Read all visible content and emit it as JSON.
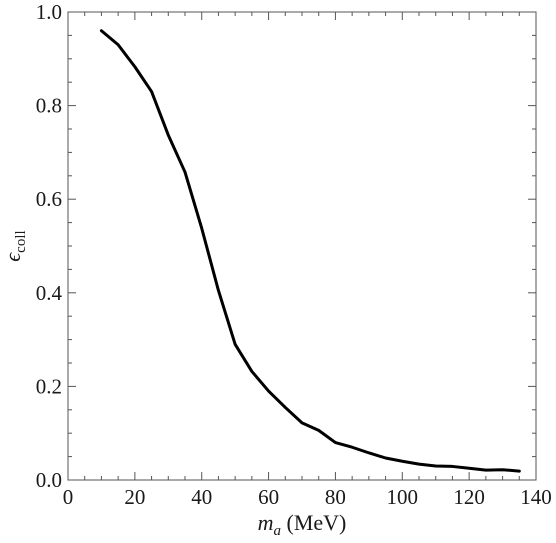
{
  "chart_data": {
    "type": "line",
    "xlabel": "m_a (MeV)",
    "ylabel": "ε_coll",
    "xlim": [
      0,
      140
    ],
    "ylim": [
      0,
      1.0
    ],
    "grid": false,
    "x_ticks": [
      0,
      20,
      40,
      60,
      80,
      100,
      120,
      140
    ],
    "y_ticks": [
      0.0,
      0.2,
      0.4,
      0.6,
      0.8,
      1.0
    ],
    "x_tick_labels": [
      "0",
      "20",
      "40",
      "60",
      "80",
      "100",
      "120",
      "140"
    ],
    "y_tick_labels": [
      "0.0",
      "0.2",
      "0.4",
      "0.6",
      "0.8",
      "1.0"
    ],
    "series": [
      {
        "color": "#000000",
        "x": [
          10,
          15,
          20,
          25,
          30,
          35,
          40,
          45,
          50,
          55,
          60,
          65,
          70,
          75,
          80,
          85,
          90,
          95,
          100,
          105,
          110,
          115,
          120,
          125,
          130,
          135
        ],
        "y": [
          0.96,
          0.93,
          0.883,
          0.83,
          0.737,
          0.658,
          0.538,
          0.405,
          0.29,
          0.232,
          0.19,
          0.155,
          0.122,
          0.106,
          0.08,
          0.07,
          0.058,
          0.047,
          0.04,
          0.034,
          0.03,
          0.029,
          0.025,
          0.021,
          0.022,
          0.019
        ]
      }
    ]
  }
}
